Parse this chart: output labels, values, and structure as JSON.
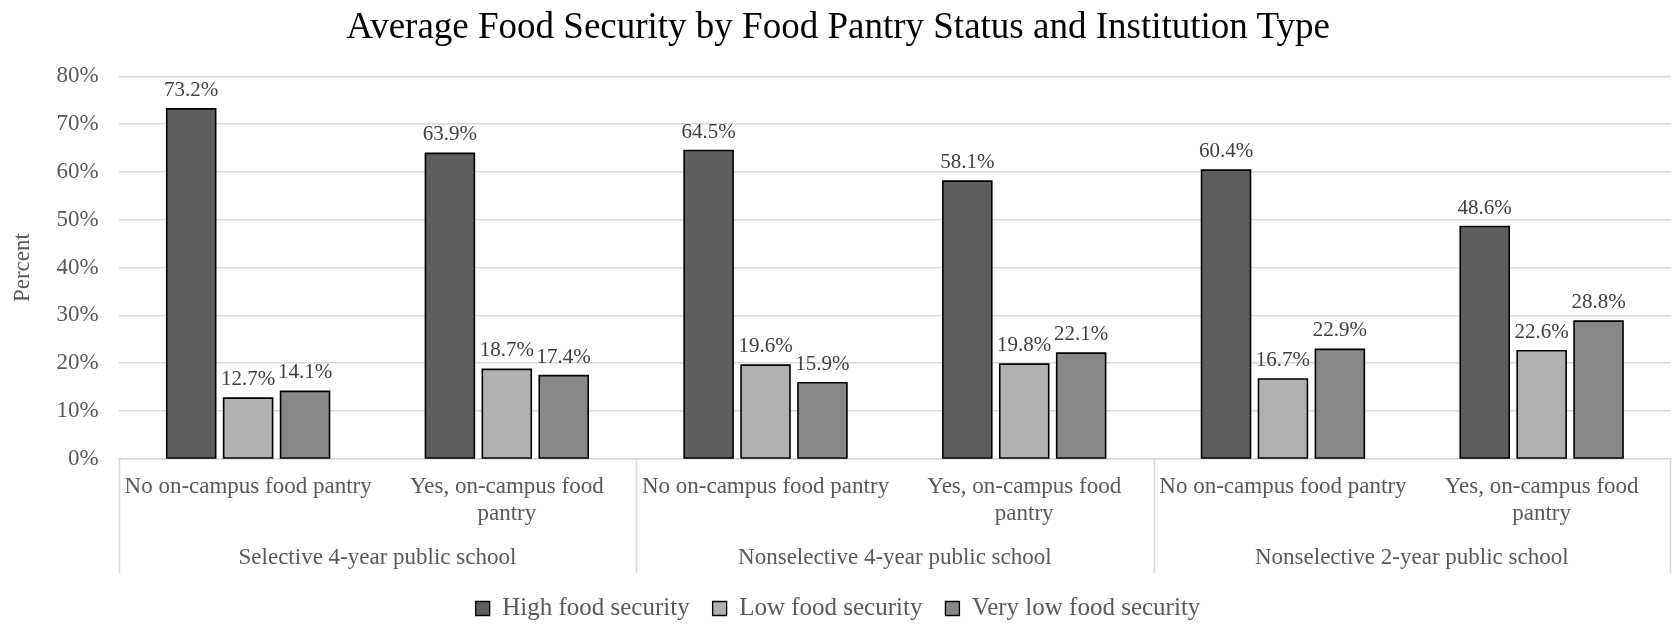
{
  "chart_data": {
    "type": "bar",
    "title": "Average Food Security by Food Pantry Status and Institution Type",
    "ylabel": "Percent",
    "categories": [
      "No on-campus food pantry",
      "Yes, on-campus food pantry",
      "No on-campus food pantry",
      "Yes, on-campus food pantry",
      "No on-campus food pantry",
      "Yes, on-campus food pantry"
    ],
    "annotations": [
      "Selective 4-year public school",
      "Nonselective 4-year public school",
      "Nonselective 2-year public school"
    ],
    "series": [
      {
        "name": "High food security",
        "color": "#5e5e5e",
        "values": [
          73.2,
          63.9,
          64.5,
          58.1,
          60.4,
          48.6
        ],
        "value_labels": [
          "73.2%",
          "63.9%",
          "64.5%",
          "58.1%",
          "60.4%",
          "48.6%"
        ]
      },
      {
        "name": "Low food security",
        "color": "#b1b1b1",
        "values": [
          12.7,
          18.7,
          19.6,
          19.8,
          16.7,
          22.6
        ],
        "value_labels": [
          "12.7%",
          "18.7%",
          "19.6%",
          "19.8%",
          "16.7%",
          "22.6%"
        ]
      },
      {
        "name": "Very low food security",
        "color": "#888888",
        "values": [
          14.1,
          17.4,
          15.9,
          22.1,
          22.9,
          28.8
        ],
        "value_labels": [
          "14.1%",
          "17.4%",
          "15.9%",
          "22.1%",
          "22.9%",
          "28.8%"
        ]
      }
    ],
    "ylim": [
      0,
      80
    ],
    "yticks": [
      {
        "value": 0,
        "label": "0%"
      },
      {
        "value": 10,
        "label": "10%"
      },
      {
        "value": 20,
        "label": "20%"
      },
      {
        "value": 30,
        "label": "30%"
      },
      {
        "value": 40,
        "label": "40%"
      },
      {
        "value": 50,
        "label": "50%"
      },
      {
        "value": 60,
        "label": "60%"
      },
      {
        "value": 70,
        "label": "70%"
      },
      {
        "value": 80,
        "label": "80%"
      }
    ],
    "grid": "y",
    "legend": "bottom"
  }
}
